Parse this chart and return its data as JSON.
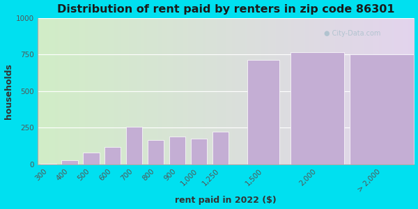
{
  "title": "Distribution of rent paid by renters in zip code 86301",
  "xlabel": "rent paid in 2022 ($)",
  "ylabel": "households",
  "categories": [
    "300",
    "400",
    "500",
    "600",
    "700",
    "800",
    "900",
    "1,000",
    "1,250",
    "1,500",
    "2,000",
    "> 2,000"
  ],
  "values": [
    5,
    28,
    80,
    120,
    255,
    165,
    190,
    175,
    225,
    715,
    765,
    750
  ],
  "bar_color": "#c4aed4",
  "ylim": [
    0,
    1000
  ],
  "yticks": [
    0,
    250,
    500,
    750,
    1000
  ],
  "background_outer": "#00e0f0",
  "title_fontsize": 11.5,
  "axis_label_fontsize": 9,
  "tick_fontsize": 7.5
}
